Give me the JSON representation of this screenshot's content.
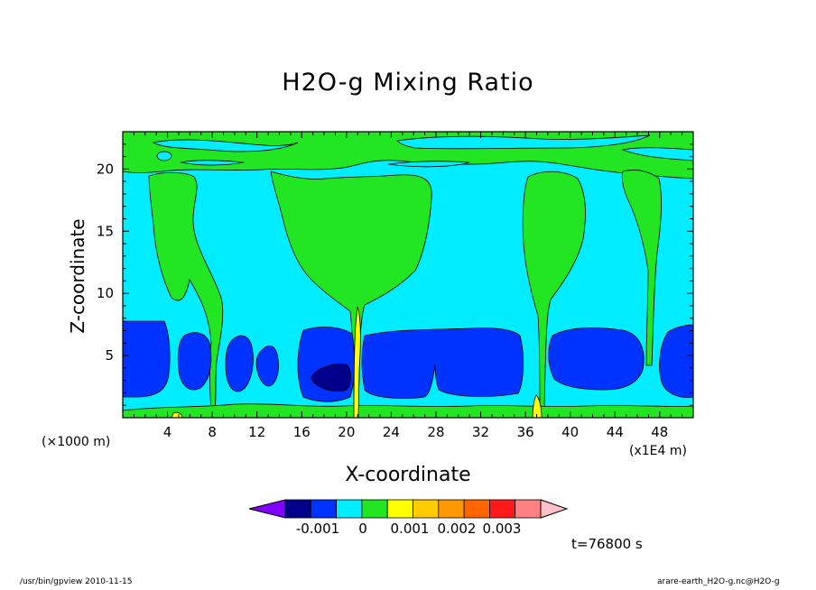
{
  "chart_data": {
    "type": "contour",
    "title": "H2O-g Mixing Ratio",
    "xlabel": "X-coordinate",
    "ylabel": "Z-coordinate",
    "x_unit_note": "(×1000 m)",
    "x_scale_note": "(x1E4 m)",
    "xlim": [
      0,
      51
    ],
    "ylim": [
      0,
      23
    ],
    "x_ticks": [
      4,
      8,
      12,
      16,
      20,
      24,
      28,
      32,
      36,
      40,
      44,
      48
    ],
    "y_ticks": [
      5,
      10,
      15,
      20
    ],
    "colorbar": {
      "colors": [
        "#7f00ff",
        "#00008b",
        "#0033ff",
        "#00ecff",
        "#22e622",
        "#ffff00",
        "#ffcc00",
        "#ff9900",
        "#ff6600",
        "#ff1a1a",
        "#ff8080",
        "#ffc0c8"
      ],
      "tick_labels": [
        "-0.001",
        "0",
        "0.001",
        "0.002",
        "0.003"
      ]
    },
    "time_label": "t=76800 s"
  },
  "footer": {
    "left": "/usr/bin/gpview   2010-11-15",
    "right": "arare-earth_H2O-g.nc@H2O-g"
  }
}
